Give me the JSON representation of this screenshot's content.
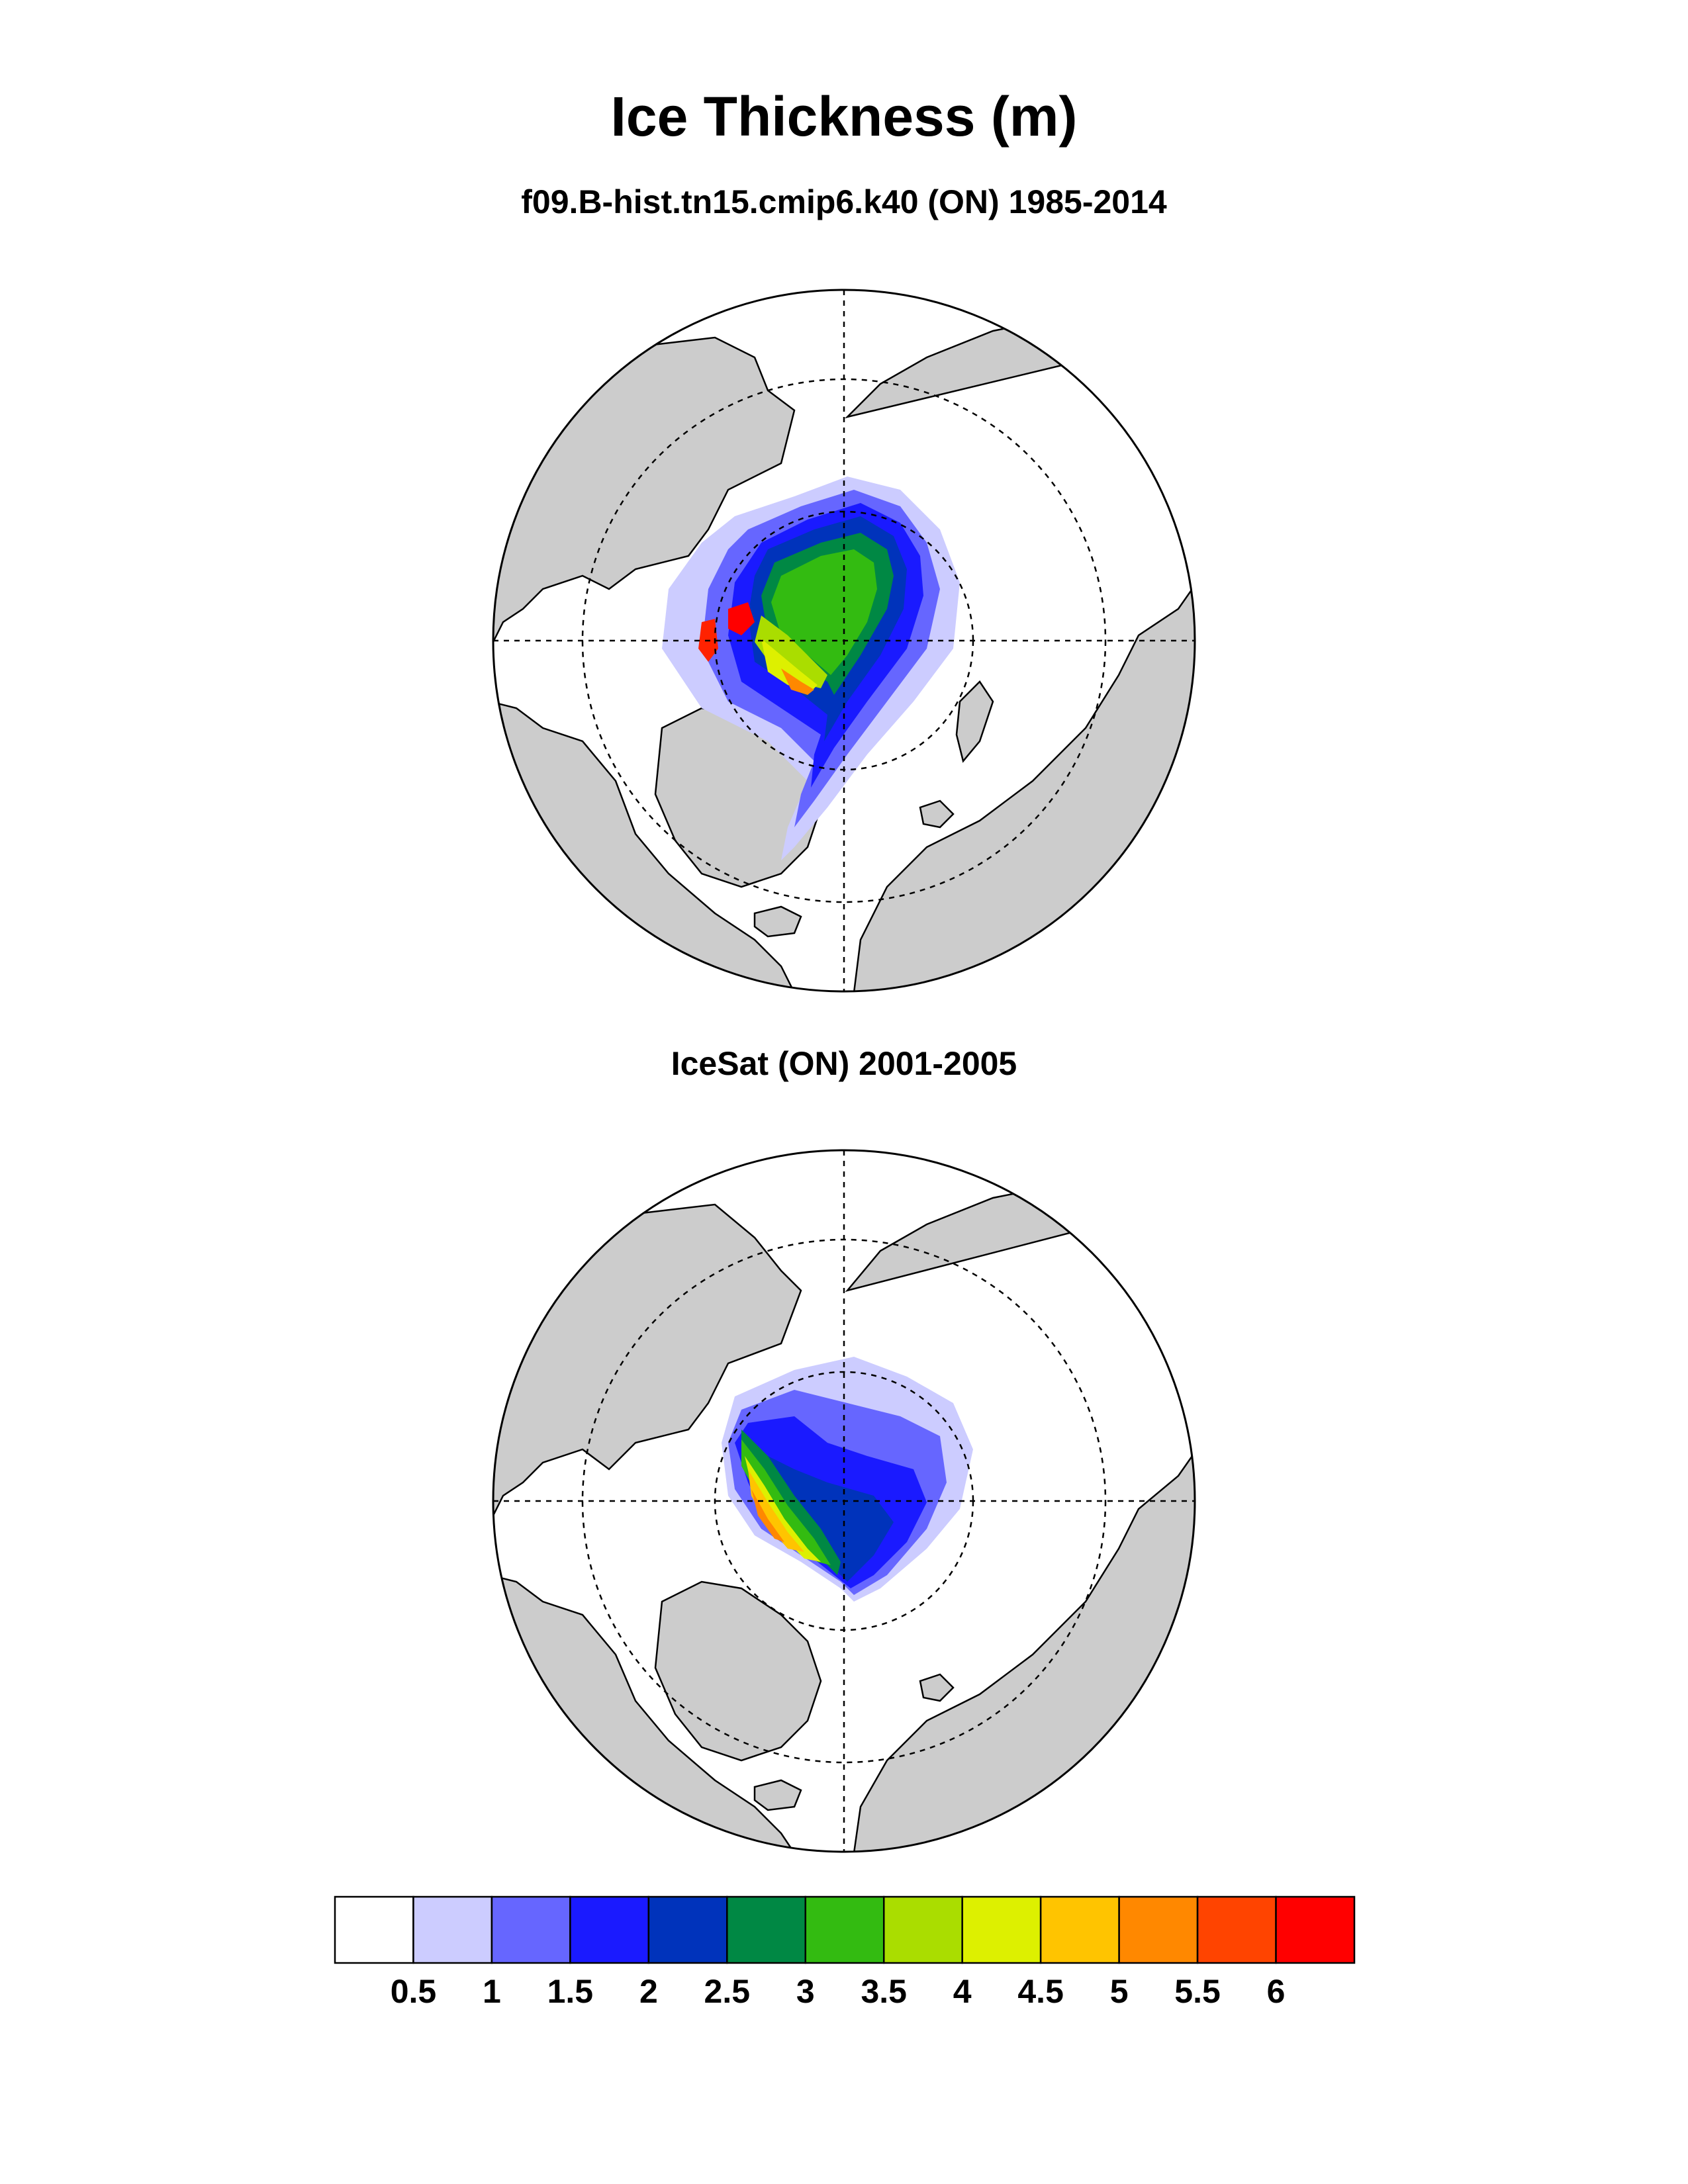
{
  "title": "Ice Thickness (m)",
  "panels": [
    {
      "subtitle": "f09.B-hist.tn15.cmip6.k40 (ON) 1985-2014",
      "type": "model"
    },
    {
      "subtitle": "IceSat (ON) 2001-2005",
      "type": "observation"
    }
  ],
  "chart_data": {
    "type": "heatmap",
    "projection": "north polar stereographic",
    "variable": "Ice Thickness (m)",
    "colorbar": {
      "levels": [
        "0.5",
        "1",
        "1.5",
        "2",
        "2.5",
        "3",
        "3.5",
        "4",
        "4.5",
        "5",
        "5.5",
        "6"
      ],
      "colors": [
        "#ffffff",
        "#ccccff",
        "#6666ff",
        "#1a1aff",
        "#0033bb",
        "#008844",
        "#33bb11",
        "#aadd00",
        "#ddf000",
        "#ffc400",
        "#ff8800",
        "#ff4400",
        "#ff0000"
      ]
    },
    "land_color": "#cccccc",
    "ocean_color": "#ffffff"
  }
}
